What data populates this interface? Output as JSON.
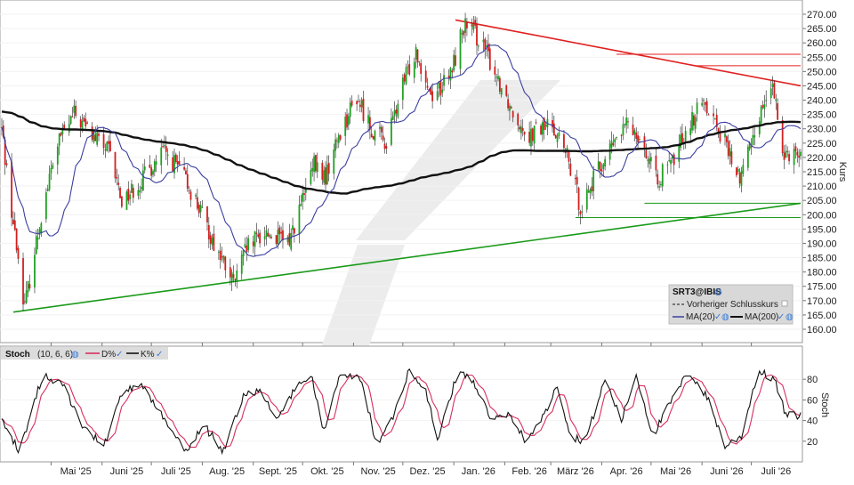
{
  "chart_data": [
    {
      "type": "candlestick",
      "symbol": "SRT3@IBIS",
      "ylabel": "Kurs",
      "ylim": [
        155,
        272
      ],
      "y_ticks": [
        "270.00",
        "265.00",
        "260.00",
        "255.00",
        "250.00",
        "245.00",
        "240.00",
        "235.00",
        "230.00",
        "225.00",
        "220.00",
        "215.00",
        "210.00",
        "205.00",
        "200.00",
        "195.00",
        "190.00",
        "185.00",
        "180.00",
        "175.00",
        "170.00",
        "165.00",
        "160.00"
      ],
      "x_ticks": [
        "Mai '25",
        "Juni '25",
        "Juli '25",
        "Aug. '25",
        "Sept. '25",
        "Okt. '25",
        "Nov. '25",
        "Dez. '25",
        "Jan. '26",
        "Feb. '26",
        "März '26",
        "Apr. '26",
        "Mai '26",
        "Juni '26",
        "Juli '26"
      ],
      "legend": {
        "symbol": "SRT3@IBIS",
        "prev_close": "Vorheriger Schlusskurs",
        "ma20": "MA(20)",
        "ma200": "MA(200)"
      },
      "series": [
        {
          "name": "MA(20)",
          "color": "#3b3f9e"
        },
        {
          "name": "MA(200)",
          "color": "#111111"
        }
      ],
      "close_anchors": [
        [
          "2025-04-01",
          230
        ],
        [
          "2025-04-08",
          197
        ],
        [
          "2025-04-15",
          168
        ],
        [
          "2025-04-25",
          200
        ],
        [
          "2025-05-05",
          225
        ],
        [
          "2025-05-15",
          235
        ],
        [
          "2025-05-26",
          228
        ],
        [
          "2025-06-05",
          222
        ],
        [
          "2025-06-13",
          205
        ],
        [
          "2025-06-25",
          212
        ],
        [
          "2025-07-08",
          222
        ],
        [
          "2025-07-18",
          216
        ],
        [
          "2025-07-28",
          205
        ],
        [
          "2025-08-08",
          190
        ],
        [
          "2025-08-20",
          176
        ],
        [
          "2025-08-28",
          188
        ],
        [
          "2025-09-08",
          194
        ],
        [
          "2025-09-22",
          190
        ],
        [
          "2025-10-01",
          205
        ],
        [
          "2025-10-08",
          217
        ],
        [
          "2025-10-15",
          213
        ],
        [
          "2025-10-23",
          228
        ],
        [
          "2025-11-03",
          241
        ],
        [
          "2025-11-12",
          230
        ],
        [
          "2025-11-21",
          225
        ],
        [
          "2025-12-01",
          245
        ],
        [
          "2025-12-09",
          258
        ],
        [
          "2025-12-18",
          242
        ],
        [
          "2025-12-29",
          247
        ],
        [
          "2026-01-07",
          266
        ],
        [
          "2026-01-16",
          262
        ],
        [
          "2026-01-26",
          250
        ],
        [
          "2026-02-06",
          236
        ],
        [
          "2026-02-16",
          228
        ],
        [
          "2026-03-02",
          232
        ],
        [
          "2026-03-11",
          220
        ],
        [
          "2026-03-19",
          203
        ],
        [
          "2026-03-27",
          212
        ],
        [
          "2026-04-06",
          223
        ],
        [
          "2026-04-17",
          232
        ],
        [
          "2026-04-24",
          228
        ],
        [
          "2026-05-04",
          212
        ],
        [
          "2026-05-14",
          218
        ],
        [
          "2026-05-22",
          230
        ],
        [
          "2026-06-03",
          240
        ],
        [
          "2026-06-15",
          225
        ],
        [
          "2026-06-24",
          212
        ],
        [
          "2026-07-03",
          230
        ],
        [
          "2026-07-13",
          246
        ],
        [
          "2026-07-21",
          222
        ]
      ],
      "trendlines": [
        {
          "name": "resistance",
          "color": "#e02020",
          "from": [
            "2026-01-02",
            268
          ],
          "to": [
            "2026-07-31",
            245
          ]
        },
        {
          "name": "support",
          "color": "#1a9a1a",
          "from": [
            "2025-04-08",
            166
          ],
          "to": [
            "2026-07-31",
            204
          ]
        },
        {
          "name": "horizontal",
          "color": "#e02020",
          "from": [
            "2026-04-10",
            256
          ],
          "to": [
            "2026-07-31",
            256
          ]
        },
        {
          "name": "horizontal",
          "color": "#e02020",
          "from": [
            "2026-05-27",
            252
          ],
          "to": [
            "2026-07-31",
            252
          ]
        },
        {
          "name": "horizontal",
          "color": "#1a9a1a",
          "from": [
            "2026-04-27",
            204
          ],
          "to": [
            "2026-07-31",
            204
          ]
        },
        {
          "name": "horizontal",
          "color": "#1a9a1a",
          "from": [
            "2026-03-16",
            199
          ],
          "to": [
            "2026-07-31",
            199
          ]
        }
      ]
    },
    {
      "type": "line",
      "title": "Stoch",
      "params": "(10, 6, 6)",
      "ylabel": "Stoch",
      "ylim": [
        0,
        100
      ],
      "y_ticks": [
        "80",
        "60",
        "40",
        "20"
      ],
      "series": [
        {
          "name": "D%",
          "color": "#d62f5e"
        },
        {
          "name": "K%",
          "color": "#111111"
        }
      ],
      "k_anchors": [
        [
          "2025-04-01",
          40
        ],
        [
          "2025-04-12",
          10
        ],
        [
          "2025-04-26",
          85
        ],
        [
          "2025-05-08",
          75
        ],
        [
          "2025-05-20",
          35
        ],
        [
          "2025-06-02",
          15
        ],
        [
          "2025-06-14",
          70
        ],
        [
          "2025-06-26",
          72
        ],
        [
          "2025-07-10",
          40
        ],
        [
          "2025-07-22",
          10
        ],
        [
          "2025-08-02",
          35
        ],
        [
          "2025-08-14",
          10
        ],
        [
          "2025-08-26",
          65
        ],
        [
          "2025-09-05",
          70
        ],
        [
          "2025-09-15",
          40
        ],
        [
          "2025-09-26",
          70
        ],
        [
          "2025-10-06",
          85
        ],
        [
          "2025-10-14",
          30
        ],
        [
          "2025-10-24",
          85
        ],
        [
          "2025-11-06",
          80
        ],
        [
          "2025-11-15",
          15
        ],
        [
          "2025-11-24",
          40
        ],
        [
          "2025-12-05",
          90
        ],
        [
          "2025-12-15",
          70
        ],
        [
          "2025-12-22",
          20
        ],
        [
          "2026-01-04",
          90
        ],
        [
          "2026-01-14",
          75
        ],
        [
          "2026-01-24",
          40
        ],
        [
          "2026-02-04",
          45
        ],
        [
          "2026-02-14",
          20
        ],
        [
          "2026-02-25",
          45
        ],
        [
          "2026-03-05",
          75
        ],
        [
          "2026-03-13",
          25
        ],
        [
          "2026-03-22",
          20
        ],
        [
          "2026-04-03",
          80
        ],
        [
          "2026-04-13",
          40
        ],
        [
          "2026-04-22",
          85
        ],
        [
          "2026-05-02",
          25
        ],
        [
          "2026-05-12",
          55
        ],
        [
          "2026-05-24",
          88
        ],
        [
          "2026-06-05",
          60
        ],
        [
          "2026-06-15",
          15
        ],
        [
          "2026-06-25",
          25
        ],
        [
          "2026-07-05",
          88
        ],
        [
          "2026-07-15",
          80
        ],
        [
          "2026-07-22",
          45
        ]
      ]
    }
  ]
}
